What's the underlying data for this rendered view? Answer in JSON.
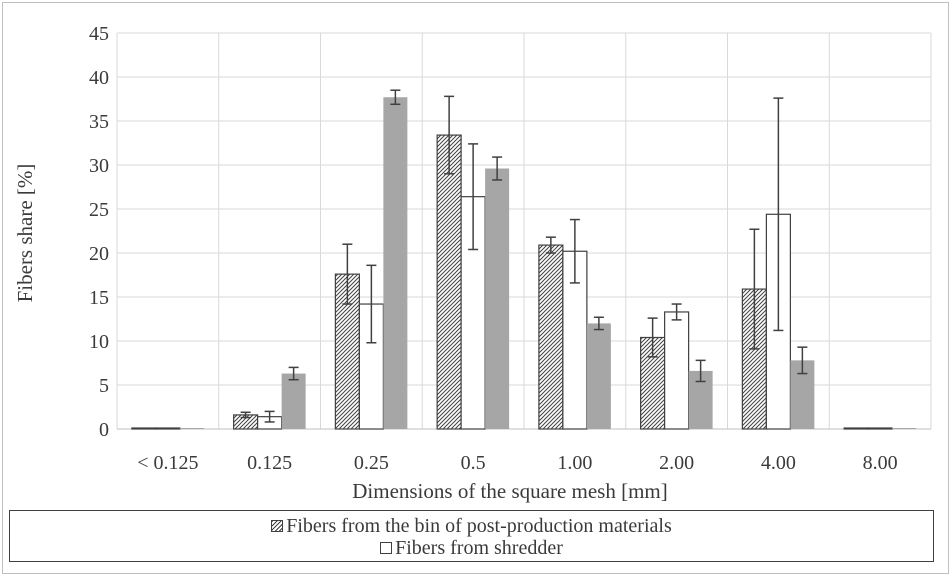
{
  "chart_data": {
    "type": "bar",
    "title": "",
    "xlabel": "Dimensions of the square mesh [mm]",
    "ylabel": "Fibers share [%]",
    "ylim": [
      0,
      45
    ],
    "yticks": [
      0,
      5,
      10,
      15,
      20,
      25,
      30,
      35,
      40,
      45
    ],
    "ytick_labels": [
      "0",
      "5",
      "10",
      "15",
      "20",
      "25",
      "30",
      "35",
      "40",
      "45"
    ],
    "grid": true,
    "legend_position": "bottom",
    "categories": [
      "< 0.125",
      "0.125",
      "0.25",
      "0.5",
      "1.00",
      "2.00",
      "4.00",
      "8.00"
    ],
    "series": [
      {
        "name": "Fibers from the bin of post-production materials",
        "style": "hatched",
        "color": "#404040",
        "values": [
          0.05,
          1.6,
          17.6,
          33.4,
          20.9,
          10.4,
          15.9,
          0.05
        ],
        "errors": [
          0.0,
          0.3,
          3.4,
          4.4,
          0.9,
          2.2,
          6.8,
          0.0
        ]
      },
      {
        "name": "Fibers from shredder",
        "style": "outline",
        "color": "#404040",
        "values": [
          0.05,
          1.4,
          14.2,
          26.4,
          20.2,
          13.3,
          24.4,
          0.05
        ],
        "errors": [
          0.0,
          0.6,
          4.4,
          6.0,
          3.6,
          0.9,
          13.2,
          0.0
        ]
      },
      {
        "style": "filled",
        "color": "#a6a6a6",
        "values": [
          0.05,
          6.3,
          37.7,
          29.6,
          12.0,
          6.6,
          7.8,
          0.05
        ],
        "errors": [
          0.0,
          0.7,
          0.8,
          1.3,
          0.7,
          1.2,
          1.5,
          0.0
        ]
      }
    ]
  },
  "legend": {
    "items": [
      "Fibers from the bin of post-production materials",
      "Fibers from shredder"
    ]
  }
}
